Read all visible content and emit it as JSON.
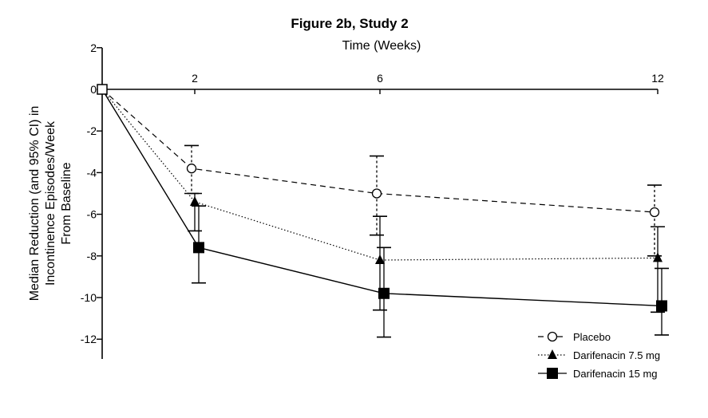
{
  "chart_data": {
    "type": "line",
    "title": "Figure 2b, Study 2",
    "xlabel": "Time (Weeks)",
    "ylabel_lines": [
      "Median Reduction (and 95% CI) in",
      "Incontinence Episodes/Week",
      "From Baseline"
    ],
    "x": [
      0,
      2,
      6,
      12
    ],
    "x_tick_labels": [
      "2",
      "6",
      "12"
    ],
    "y_ticks": [
      2,
      0,
      -2,
      -4,
      -6,
      -8,
      -10,
      -12
    ],
    "y_tick_labels": [
      "2",
      "0",
      "-2",
      "-4",
      "-6",
      "-8",
      "-10",
      "-12"
    ],
    "ylim": [
      -13,
      2
    ],
    "xlim": [
      0,
      12
    ],
    "grid": false,
    "legend_position": "bottom-right",
    "series": [
      {
        "name": "Placebo",
        "marker": "open-circle",
        "line_style": "dashed",
        "values": [
          0,
          -3.8,
          -5.0,
          -5.9
        ],
        "ci_low": [
          null,
          -5.0,
          -7.0,
          -8.0
        ],
        "ci_high": [
          null,
          -2.7,
          -3.2,
          -4.6
        ]
      },
      {
        "name": "Darifenacin 7.5 mg",
        "marker": "filled-triangle",
        "line_style": "dotted",
        "values": [
          0,
          -5.4,
          -8.2,
          -8.1
        ],
        "ci_low": [
          null,
          -6.8,
          -10.6,
          -10.7
        ],
        "ci_high": [
          null,
          -5.0,
          -6.1,
          -6.6
        ]
      },
      {
        "name": "Darifenacin 15 mg",
        "marker": "filled-square",
        "line_style": "solid",
        "values": [
          0,
          -7.6,
          -9.8,
          -10.4
        ],
        "ci_low": [
          null,
          -9.3,
          -11.9,
          -11.8
        ],
        "ci_high": [
          null,
          -5.6,
          -7.6,
          -8.6
        ]
      }
    ]
  }
}
